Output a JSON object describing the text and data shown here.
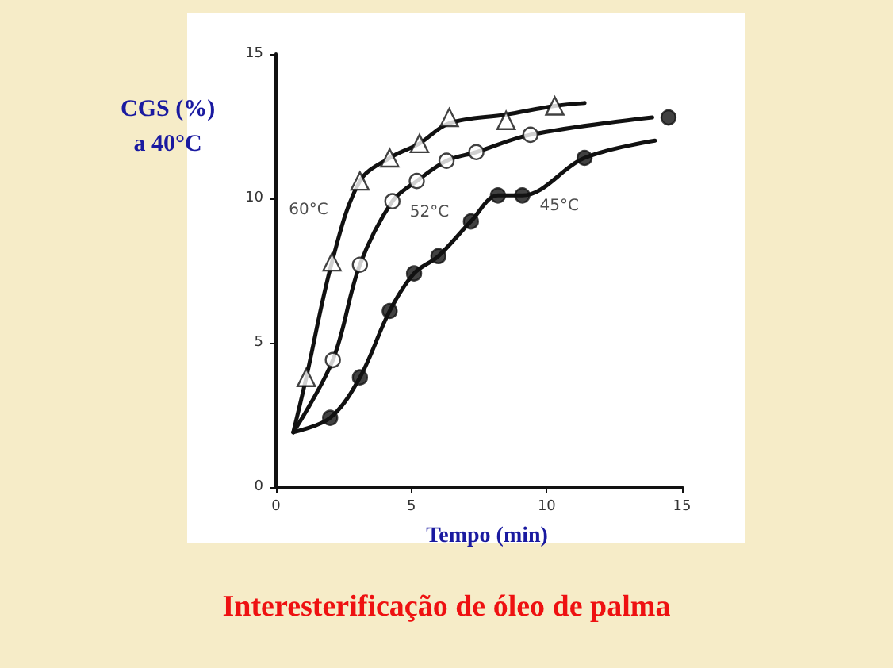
{
  "chart_data": {
    "type": "scatter",
    "title": "Interesterificação de óleo de palma",
    "xlabel": "Tempo (min)",
    "ylabel": "CGS (%)\na 40°C",
    "xlim": [
      0,
      15
    ],
    "xticks": [
      0,
      5,
      10,
      15
    ],
    "ylim": [
      0,
      15
    ],
    "yticks": [
      0,
      5,
      10,
      15
    ],
    "grid": false,
    "series": [
      {
        "type": "line",
        "color": "#111111",
        "marker": "none",
        "x": [
          0.64,
          1.12,
          2.07,
          3.1,
          4.2,
          5.3,
          6.4,
          8.5,
          10.3,
          11.4
        ],
        "values": [
          1.9,
          3.8,
          7.8,
          10.6,
          11.4,
          11.9,
          12.6,
          12.9,
          13.2,
          13.3
        ]
      },
      {
        "type": "line",
        "color": "#111111",
        "marker": "none",
        "x": [
          0.64,
          2.1,
          3.1,
          4.3,
          5.2,
          6.3,
          7.4,
          9.4,
          13.9
        ],
        "values": [
          1.9,
          4.4,
          7.7,
          9.9,
          10.6,
          11.3,
          11.6,
          12.2,
          12.8
        ]
      },
      {
        "type": "line",
        "color": "#111111",
        "marker": "none",
        "x": [
          0.64,
          2.0,
          3.1,
          4.2,
          5.1,
          6.0,
          7.2,
          8.2,
          9.1,
          11.4,
          14.0
        ],
        "values": [
          1.9,
          2.4,
          3.8,
          6.1,
          7.4,
          8.0,
          9.2,
          10.1,
          10.1,
          11.4,
          12.0
        ]
      },
      {
        "color": "#ffffff",
        "marker": "triangle",
        "x": [
          1.12,
          2.07,
          3.1,
          4.2,
          5.3,
          6.4,
          8.5,
          10.3
        ],
        "values": [
          3.8,
          7.8,
          10.6,
          11.4,
          11.9,
          12.8,
          12.7,
          13.2
        ]
      },
      {
        "color": "#ffffff",
        "marker": "circle",
        "x": [
          2.1,
          3.1,
          4.3,
          5.2,
          6.3,
          7.4,
          9.4
        ],
        "values": [
          4.4,
          7.7,
          9.9,
          10.6,
          11.3,
          11.6,
          12.2
        ]
      },
      {
        "color": "#111111",
        "marker": "circle",
        "x": [
          2.0,
          3.1,
          4.2,
          5.1,
          6.0,
          7.2,
          8.2,
          9.1,
          11.4,
          14.5
        ],
        "values": [
          2.4,
          3.8,
          6.1,
          7.4,
          8.0,
          9.2,
          10.1,
          10.1,
          11.4,
          12.8
        ]
      }
    ],
    "annotations": [
      {
        "text": "60°C",
        "x": 2.45,
        "y": 9.6
      },
      {
        "text": "52°C",
        "x": 4.3,
        "y": 9.9
      },
      {
        "text": "45°C",
        "x": 9.1,
        "y": 10.1
      }
    ]
  }
}
